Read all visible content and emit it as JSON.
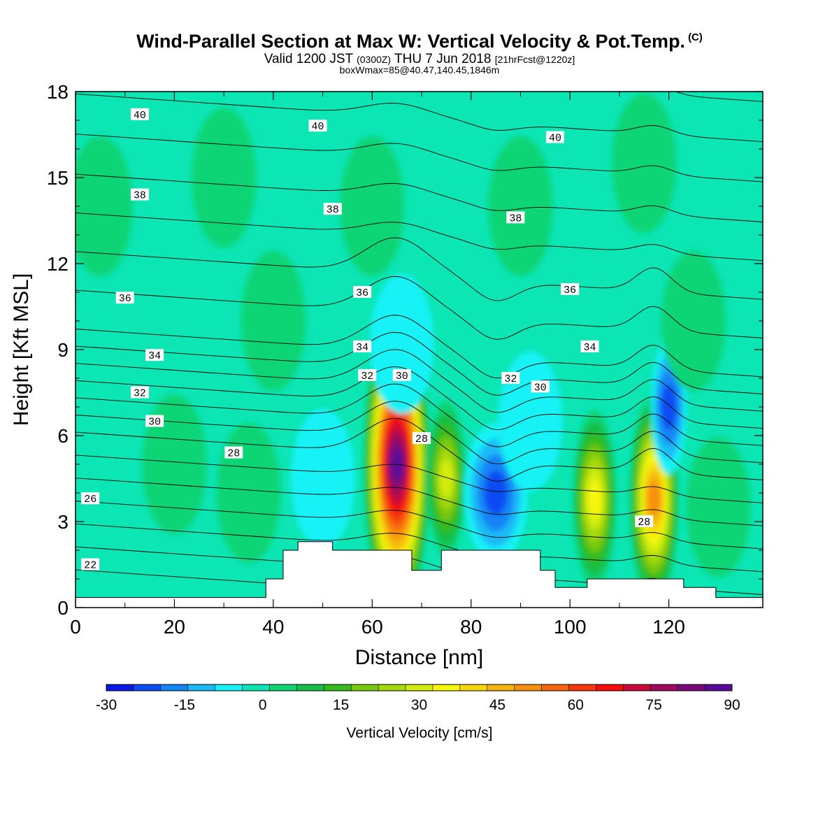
{
  "header": {
    "title": "Wind-Parallel Section at Max W: Vertical Velocity & Pot.Temp.",
    "title_tag": "(C)",
    "subtitle_main": "Valid 1200 JST",
    "subtitle_zulu": "(0300Z)",
    "subtitle_date": "THU 7 Jun 2018",
    "subtitle_fcst": "[21hrFcst@1220z]",
    "info": "boxWmax=85@40.47,140.45,1846m"
  },
  "colorbar": {
    "label": "Vertical Velocity [cm/s]",
    "tick_labels": [
      "-30",
      "-15",
      "0",
      "15",
      "30",
      "45",
      "60",
      "75",
      "90"
    ],
    "colors": [
      "#0a18e8",
      "#0c4cf2",
      "#1384f6",
      "#1ab9f6",
      "#19f2f5",
      "#0ce5b4",
      "#0fd474",
      "#16be45",
      "#35bb1e",
      "#79c90e",
      "#a6d90c",
      "#d2ec0b",
      "#f6f60d",
      "#f6d70d",
      "#f6b40d",
      "#f68f0d",
      "#f6640d",
      "#f6380c",
      "#f60a0a",
      "#c80a3a",
      "#a00a5a",
      "#7a0a7a",
      "#5a0a9a"
    ]
  },
  "chart_data": {
    "type": "heatmap",
    "xlabel": "Distance [nm]",
    "ylabel": "Height [Kft MSL]",
    "xlim": [
      0,
      139
    ],
    "ylim": [
      0,
      18
    ],
    "x_ticks": [
      0,
      20,
      40,
      60,
      80,
      100,
      120
    ],
    "y_ticks": [
      0,
      3,
      6,
      9,
      12,
      15,
      18
    ],
    "field": "Vertical Velocity [cm/s]",
    "contour_field": "Potential Temperature (C)",
    "contour_labels": [
      {
        "x": 13,
        "y": 17.2,
        "text": "40"
      },
      {
        "x": 49,
        "y": 16.8,
        "text": "40"
      },
      {
        "x": 97,
        "y": 16.4,
        "text": "40"
      },
      {
        "x": 13,
        "y": 14.4,
        "text": "38"
      },
      {
        "x": 52,
        "y": 13.9,
        "text": "38"
      },
      {
        "x": 89,
        "y": 13.6,
        "text": "38"
      },
      {
        "x": 10,
        "y": 10.8,
        "text": "36"
      },
      {
        "x": 58,
        "y": 11.0,
        "text": "36"
      },
      {
        "x": 100,
        "y": 11.1,
        "text": "36"
      },
      {
        "x": 16,
        "y": 8.8,
        "text": "34"
      },
      {
        "x": 58,
        "y": 9.1,
        "text": "34"
      },
      {
        "x": 104,
        "y": 9.1,
        "text": "34"
      },
      {
        "x": 13,
        "y": 7.5,
        "text": "32"
      },
      {
        "x": 59,
        "y": 8.1,
        "text": "32"
      },
      {
        "x": 88,
        "y": 8.0,
        "text": "32"
      },
      {
        "x": 16,
        "y": 6.5,
        "text": "30"
      },
      {
        "x": 66,
        "y": 8.1,
        "text": "30"
      },
      {
        "x": 94,
        "y": 7.7,
        "text": "30"
      },
      {
        "x": 32,
        "y": 5.4,
        "text": "28"
      },
      {
        "x": 70,
        "y": 5.9,
        "text": "28"
      },
      {
        "x": 115,
        "y": 3.0,
        "text": "28"
      },
      {
        "x": 3,
        "y": 3.8,
        "text": "26"
      },
      {
        "x": 3,
        "y": 1.5,
        "text": "22"
      }
    ],
    "w_features": [
      {
        "x": 65,
        "y": 5.0,
        "value": 85
      },
      {
        "x": 75,
        "y": 4.5,
        "value": 30
      },
      {
        "x": 85,
        "y": 4.0,
        "value": -20
      },
      {
        "x": 105,
        "y": 3.8,
        "value": 38
      },
      {
        "x": 117,
        "y": 3.8,
        "value": 50
      },
      {
        "x": 120,
        "y": 7.0,
        "value": -22
      },
      {
        "x": 50,
        "y": 4.5,
        "value": -5
      },
      {
        "x": 92,
        "y": 6.5,
        "value": -7
      },
      {
        "x": 66,
        "y": 9.2,
        "value": -5
      },
      {
        "x": 20,
        "y": 5.0,
        "value": 6
      },
      {
        "x": 35,
        "y": 4.0,
        "value": 5
      },
      {
        "x": 5,
        "y": 14.0,
        "value": 7
      },
      {
        "x": 30,
        "y": 15.0,
        "value": 6
      },
      {
        "x": 60,
        "y": 14.0,
        "value": 4
      },
      {
        "x": 90,
        "y": 14.0,
        "value": 3
      },
      {
        "x": 115,
        "y": 15.5,
        "value": 4
      },
      {
        "x": 125,
        "y": 10.0,
        "value": 5
      },
      {
        "x": 130,
        "y": 3.5,
        "value": 5
      },
      {
        "x": 40,
        "y": 10.0,
        "value": 2
      }
    ],
    "terrain": [
      [
        0,
        0.35
      ],
      [
        38.5,
        0.35
      ],
      [
        38.5,
        1.0
      ],
      [
        42,
        1.0
      ],
      [
        42,
        2.0
      ],
      [
        45,
        2.0
      ],
      [
        45,
        2.3
      ],
      [
        52,
        2.3
      ],
      [
        52,
        2.0
      ],
      [
        68,
        2.0
      ],
      [
        68,
        1.3
      ],
      [
        74,
        1.3
      ],
      [
        74,
        2.0
      ],
      [
        94,
        2.0
      ],
      [
        94,
        1.3
      ],
      [
        97,
        1.3
      ],
      [
        97,
        0.7
      ],
      [
        103.5,
        0.7
      ],
      [
        103.5,
        1.0
      ],
      [
        123,
        1.0
      ],
      [
        123,
        0.7
      ],
      [
        129.5,
        0.7
      ],
      [
        129.5,
        0.35
      ],
      [
        139,
        0.35
      ]
    ]
  }
}
